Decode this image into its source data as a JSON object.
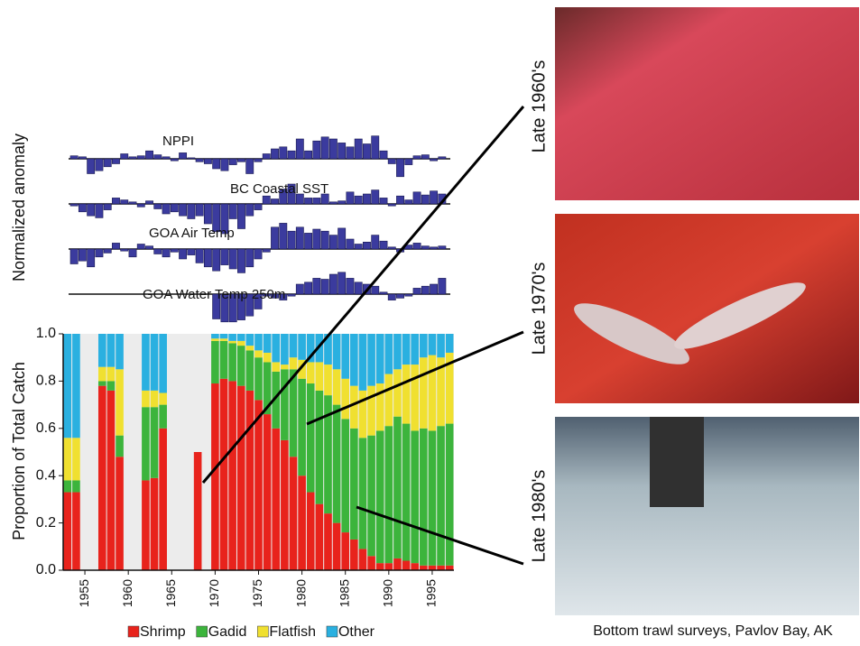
{
  "chart_data": [
    {
      "type": "anomaly",
      "ylabel": "Normalized anomaly",
      "color": "#3b3b9e",
      "x": [
        1953,
        1954,
        1955,
        1956,
        1957,
        1958,
        1959,
        1960,
        1961,
        1962,
        1963,
        1964,
        1965,
        1966,
        1967,
        1968,
        1969,
        1970,
        1971,
        1972,
        1973,
        1974,
        1975,
        1976,
        1977,
        1978,
        1979,
        1980,
        1981,
        1982,
        1983,
        1984,
        1985,
        1986,
        1987,
        1988,
        1989,
        1990,
        1991,
        1992,
        1993,
        1994,
        1995,
        1996,
        1997
      ],
      "series": [
        {
          "name": "NPPI",
          "values": [
            0.3,
            0.2,
            -1.5,
            -1.2,
            -0.8,
            -0.5,
            0.5,
            0.2,
            0.3,
            0.8,
            0.4,
            0.2,
            -0.2,
            0.6,
            0.1,
            -0.3,
            -0.5,
            -1.0,
            -1.2,
            -0.6,
            -0.3,
            -1.5,
            -0.3,
            0.5,
            1.0,
            1.2,
            0.8,
            2.0,
            0.8,
            1.8,
            2.2,
            2.0,
            1.6,
            1.2,
            2.0,
            1.5,
            2.3,
            0.8,
            -0.5,
            -1.8,
            -0.6,
            0.3,
            0.4,
            -0.2,
            0.2
          ]
        },
        {
          "name": "BC Coastal SST",
          "values": [
            -0.2,
            -0.8,
            -1.2,
            -1.4,
            -0.6,
            0.6,
            0.4,
            0.2,
            -0.3,
            0.3,
            -0.5,
            -1.0,
            -0.8,
            -1.2,
            -1.5,
            -1.2,
            -2.0,
            -2.8,
            -3.0,
            -1.5,
            -2.5,
            -1.2,
            -0.6,
            0.8,
            0.5,
            1.5,
            2.0,
            1.0,
            0.6,
            0.6,
            1.0,
            0.2,
            0.3,
            1.2,
            0.8,
            1.0,
            1.4,
            0.6,
            -0.2,
            0.8,
            0.4,
            1.2,
            0.9,
            1.3,
            1.0
          ]
        },
        {
          "name": "GOA Air Temp",
          "values": [
            -1.5,
            -1.2,
            -1.8,
            -0.8,
            -0.4,
            0.6,
            -0.2,
            -0.8,
            0.5,
            0.3,
            -0.5,
            -0.8,
            -0.3,
            -1.0,
            -0.6,
            -1.4,
            -1.8,
            -2.2,
            -1.6,
            -2.0,
            -2.4,
            -1.8,
            -1.0,
            -0.3,
            2.2,
            2.6,
            1.8,
            2.2,
            1.6,
            2.0,
            1.8,
            1.4,
            2.1,
            1.0,
            0.5,
            0.7,
            1.4,
            0.8,
            0.2,
            -0.3,
            0.4,
            0.6,
            0.3,
            0.2,
            0.3
          ]
        },
        {
          "name": "GOA Water Temp 250m",
          "values": [
            null,
            null,
            null,
            null,
            null,
            null,
            null,
            null,
            null,
            null,
            null,
            null,
            null,
            null,
            null,
            null,
            null,
            -2.5,
            -2.8,
            -2.8,
            -2.6,
            -2.2,
            -1.5,
            -0.2,
            -0.4,
            -0.6,
            -0.2,
            1.0,
            1.2,
            1.6,
            1.5,
            2.0,
            2.2,
            1.6,
            1.2,
            1.0,
            0.8,
            0.2,
            -0.6,
            -0.4,
            -0.2,
            0.6,
            0.8,
            1.0,
            1.6
          ]
        }
      ]
    },
    {
      "type": "stacked_bar",
      "ylabel": "Proportion of Total Catch",
      "x": [
        1953,
        1954,
        1955,
        1956,
        1957,
        1958,
        1959,
        1960,
        1961,
        1962,
        1963,
        1964,
        1965,
        1966,
        1967,
        1968,
        1969,
        1970,
        1971,
        1972,
        1973,
        1974,
        1975,
        1976,
        1977,
        1978,
        1979,
        1980,
        1981,
        1982,
        1983,
        1984,
        1985,
        1986,
        1987,
        1988,
        1989,
        1990,
        1991,
        1992,
        1993,
        1994,
        1995,
        1996,
        1997
      ],
      "xlim": [
        1952.5,
        1997.5
      ],
      "xticks": [
        1955,
        1960,
        1965,
        1970,
        1975,
        1980,
        1985,
        1990,
        1995
      ],
      "ylim": [
        0,
        1
      ],
      "yticks": [
        {
          "value": 0,
          "label": "0.0"
        },
        0.2,
        0.4,
        0.6,
        0.8,
        {
          "value": 1,
          "label": "1.0"
        }
      ],
      "series": [
        {
          "name": "Shrimp",
          "color": "#e8231c",
          "values": [
            0.33,
            0.33,
            null,
            null,
            0.78,
            0.76,
            0.48,
            null,
            null,
            0.38,
            0.39,
            0.6,
            null,
            null,
            null,
            0.5,
            null,
            0.79,
            0.81,
            0.8,
            0.78,
            0.76,
            0.72,
            0.66,
            0.6,
            0.55,
            0.48,
            0.4,
            0.33,
            0.28,
            0.24,
            0.2,
            0.16,
            0.13,
            0.09,
            0.06,
            0.03,
            0.03,
            0.05,
            0.04,
            0.03,
            0.02,
            0.02,
            0.02,
            0.02
          ]
        },
        {
          "name": "Gadid",
          "color": "#3cb43c",
          "values": [
            0.05,
            0.05,
            null,
            null,
            0.02,
            0.04,
            0.09,
            null,
            null,
            0.31,
            0.3,
            0.1,
            null,
            null,
            null,
            0,
            null,
            0.18,
            0.16,
            0.16,
            0.17,
            0.17,
            0.18,
            0.22,
            0.24,
            0.3,
            0.37,
            0.41,
            0.46,
            0.48,
            0.5,
            0.5,
            0.48,
            0.47,
            0.47,
            0.51,
            0.56,
            0.58,
            0.6,
            0.58,
            0.56,
            0.58,
            0.57,
            0.59,
            0.6
          ]
        },
        {
          "name": "Flatfish",
          "color": "#f0e030",
          "values": [
            0.18,
            0.18,
            null,
            null,
            0.06,
            0.06,
            0.28,
            null,
            null,
            0.07,
            0.07,
            0.05,
            null,
            null,
            null,
            0,
            null,
            0.01,
            0.01,
            0.01,
            0.02,
            0.02,
            0.03,
            0.04,
            0.04,
            0.02,
            0.05,
            0.08,
            0.09,
            0.12,
            0.13,
            0.15,
            0.17,
            0.18,
            0.2,
            0.21,
            0.2,
            0.22,
            0.2,
            0.25,
            0.28,
            0.3,
            0.32,
            0.29,
            0.3
          ]
        },
        {
          "name": "Other",
          "color": "#2ab0e0",
          "values": [
            0.44,
            0.44,
            null,
            null,
            0.14,
            0.14,
            0.15,
            null,
            null,
            0.24,
            0.24,
            0.25,
            null,
            null,
            null,
            0,
            null,
            0.02,
            0.02,
            0.03,
            0.03,
            0.05,
            0.07,
            0.08,
            0.12,
            0.13,
            0.1,
            0.11,
            0.12,
            0.12,
            0.13,
            0.15,
            0.19,
            0.22,
            0.24,
            0.22,
            0.21,
            0.17,
            0.15,
            0.13,
            0.13,
            0.1,
            0.09,
            0.1,
            0.08
          ]
        }
      ]
    }
  ],
  "photos": {
    "labels": [
      "Late 1960's",
      "Late 1970's",
      "Late 1980's"
    ],
    "caption": "Bottom trawl surveys, Pavlov Bay, AK"
  }
}
